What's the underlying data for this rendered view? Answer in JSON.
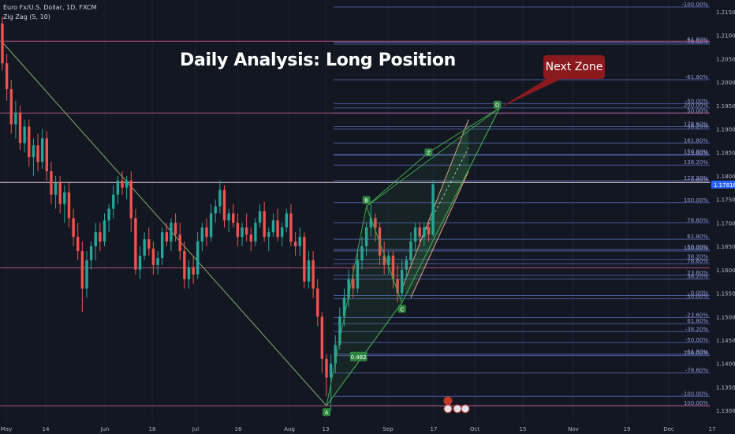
{
  "legend": {
    "symbol": "Euro Fx/U.S. Dollar, 1D, FXCM",
    "indicator": "Zig Zag (5, 10)"
  },
  "title": "Daily Analysis: Long Position",
  "callout": "Next Zone",
  "colors": {
    "background": "#131722",
    "up": "#26a69a",
    "down": "#ef5350",
    "fib_line": "#4a5a9a",
    "fib_text": "#8f9bd0",
    "hline": "#c85a8a",
    "zigzag": "#7fb069",
    "pattern": "#3fa34d",
    "channel": "#e8a08a",
    "callout": "#8b1a1f",
    "price_tag": "#2962ff"
  },
  "chart_data": {
    "type": "candlestick",
    "y_axis": {
      "ylim": [
        1.1275,
        1.2175
      ],
      "ticks": [
        "1.21500",
        "1.21000",
        "1.20500",
        "1.20000",
        "1.19500",
        "1.19000",
        "1.18500",
        "1.18000",
        "1.17500",
        "1.17000",
        "1.16500",
        "1.16000",
        "1.15500",
        "1.15000",
        "1.14500",
        "1.14000",
        "1.13500",
        "1.13000"
      ],
      "current_price": "1.17816"
    },
    "x_axis": {
      "ticks": [
        "May",
        "14",
        "Jun",
        "18",
        "Jul",
        "16",
        "Aug",
        "13",
        "Sep",
        "17",
        "Oct",
        "15",
        "Nov",
        "19",
        "Dec",
        "17"
      ]
    },
    "candles": [
      [
        1.2125,
        1.214,
        1.2025,
        1.204
      ],
      [
        1.204,
        1.206,
        1.196,
        1.1985
      ],
      [
        1.1985,
        1.2005,
        1.189,
        1.191
      ],
      [
        1.191,
        1.196,
        1.188,
        1.1935
      ],
      [
        1.1935,
        1.195,
        1.1855,
        1.187
      ],
      [
        1.187,
        1.192,
        1.185,
        1.1905
      ],
      [
        1.1905,
        1.192,
        1.182,
        1.184
      ],
      [
        1.184,
        1.188,
        1.18,
        1.1865
      ],
      [
        1.1865,
        1.189,
        1.181,
        1.183
      ],
      [
        1.183,
        1.19,
        1.1815,
        1.188
      ],
      [
        1.188,
        1.1895,
        1.179,
        1.181
      ],
      [
        1.181,
        1.183,
        1.174,
        1.176
      ],
      [
        1.176,
        1.18,
        1.173,
        1.1785
      ],
      [
        1.1785,
        1.18,
        1.172,
        1.174
      ],
      [
        1.174,
        1.178,
        1.17,
        1.1765
      ],
      [
        1.1765,
        1.1785,
        1.169,
        1.171
      ],
      [
        1.171,
        1.173,
        1.165,
        1.167
      ],
      [
        1.167,
        1.17,
        1.162,
        1.164
      ],
      [
        1.164,
        1.166,
        1.151,
        1.156
      ],
      [
        1.156,
        1.164,
        1.154,
        1.162
      ],
      [
        1.162,
        1.166,
        1.16,
        1.165
      ],
      [
        1.165,
        1.17,
        1.162,
        1.168
      ],
      [
        1.168,
        1.17,
        1.164,
        1.166
      ],
      [
        1.166,
        1.172,
        1.165,
        1.1705
      ],
      [
        1.1705,
        1.174,
        1.168,
        1.173
      ],
      [
        1.173,
        1.178,
        1.171,
        1.176
      ],
      [
        1.176,
        1.18,
        1.174,
        1.179
      ],
      [
        1.179,
        1.181,
        1.176,
        1.1775
      ],
      [
        1.1775,
        1.18,
        1.175,
        1.179
      ],
      [
        1.179,
        1.181,
        1.168,
        1.171
      ],
      [
        1.171,
        1.173,
        1.159,
        1.16
      ],
      [
        1.16,
        1.165,
        1.158,
        1.163
      ],
      [
        1.163,
        1.168,
        1.162,
        1.1665
      ],
      [
        1.1665,
        1.169,
        1.163,
        1.1645
      ],
      [
        1.1645,
        1.166,
        1.159,
        1.161
      ],
      [
        1.161,
        1.164,
        1.159,
        1.1625
      ],
      [
        1.1625,
        1.169,
        1.161,
        1.168
      ],
      [
        1.168,
        1.17,
        1.165,
        1.166
      ],
      [
        1.166,
        1.171,
        1.164,
        1.17
      ],
      [
        1.17,
        1.172,
        1.166,
        1.1675
      ],
      [
        1.1675,
        1.17,
        1.162,
        1.164
      ],
      [
        1.164,
        1.166,
        1.156,
        1.158
      ],
      [
        1.158,
        1.162,
        1.156,
        1.1605
      ],
      [
        1.1605,
        1.163,
        1.157,
        1.159
      ],
      [
        1.159,
        1.168,
        1.158,
        1.166
      ],
      [
        1.166,
        1.17,
        1.164,
        1.169
      ],
      [
        1.169,
        1.171,
        1.165,
        1.167
      ],
      [
        1.167,
        1.174,
        1.166,
        1.172
      ],
      [
        1.172,
        1.175,
        1.17,
        1.1735
      ],
      [
        1.1735,
        1.179,
        1.172,
        1.177
      ],
      [
        1.177,
        1.178,
        1.169,
        1.1705
      ],
      [
        1.1705,
        1.173,
        1.168,
        1.172
      ],
      [
        1.172,
        1.174,
        1.169,
        1.17
      ],
      [
        1.17,
        1.172,
        1.165,
        1.167
      ],
      [
        1.167,
        1.17,
        1.165,
        1.169
      ],
      [
        1.169,
        1.172,
        1.166,
        1.1675
      ],
      [
        1.1675,
        1.169,
        1.164,
        1.166
      ],
      [
        1.166,
        1.171,
        1.165,
        1.17
      ],
      [
        1.17,
        1.174,
        1.169,
        1.1725
      ],
      [
        1.1725,
        1.1745,
        1.166,
        1.167
      ],
      [
        1.167,
        1.169,
        1.164,
        1.168
      ],
      [
        1.168,
        1.172,
        1.167,
        1.1705
      ],
      [
        1.1705,
        1.173,
        1.166,
        1.167
      ],
      [
        1.167,
        1.17,
        1.165,
        1.169
      ],
      [
        1.169,
        1.173,
        1.168,
        1.172
      ],
      [
        1.172,
        1.174,
        1.165,
        1.166
      ],
      [
        1.166,
        1.168,
        1.163,
        1.165
      ],
      [
        1.165,
        1.169,
        1.163,
        1.167
      ],
      [
        1.167,
        1.168,
        1.156,
        1.1575
      ],
      [
        1.1575,
        1.164,
        1.156,
        1.162
      ],
      [
        1.162,
        1.164,
        1.154,
        1.156
      ],
      [
        1.156,
        1.158,
        1.148,
        1.15
      ],
      [
        1.15,
        1.151,
        1.138,
        1.141
      ],
      [
        1.141,
        1.142,
        1.133,
        1.137
      ],
      [
        1.137,
        1.142,
        1.13,
        1.14
      ],
      [
        1.14,
        1.146,
        1.138,
        1.144
      ],
      [
        1.144,
        1.152,
        1.143,
        1.15
      ],
      [
        1.15,
        1.156,
        1.148,
        1.154
      ],
      [
        1.154,
        1.16,
        1.152,
        1.158
      ],
      [
        1.158,
        1.161,
        1.154,
        1.156
      ],
      [
        1.156,
        1.164,
        1.155,
        1.162
      ],
      [
        1.162,
        1.167,
        1.16,
        1.165
      ],
      [
        1.165,
        1.17,
        1.163,
        1.169
      ],
      [
        1.169,
        1.174,
        1.167,
        1.171
      ],
      [
        1.171,
        1.172,
        1.166,
        1.169
      ],
      [
        1.169,
        1.17,
        1.161,
        1.163
      ],
      [
        1.163,
        1.166,
        1.159,
        1.161
      ],
      [
        1.161,
        1.164,
        1.159,
        1.163
      ],
      [
        1.163,
        1.164,
        1.156,
        1.158
      ],
      [
        1.158,
        1.161,
        1.153,
        1.155
      ],
      [
        1.155,
        1.162,
        1.154,
        1.16
      ],
      [
        1.16,
        1.163,
        1.158,
        1.162
      ],
      [
        1.162,
        1.168,
        1.161,
        1.166
      ],
      [
        1.166,
        1.17,
        1.164,
        1.169
      ],
      [
        1.169,
        1.17,
        1.165,
        1.167
      ],
      [
        1.167,
        1.17,
        1.165,
        1.169
      ],
      [
        1.169,
        1.17,
        1.166,
        1.1675
      ],
      [
        1.1675,
        1.179,
        1.167,
        1.1782
      ]
    ],
    "fib_levels": [
      {
        "y": 1.216,
        "label": "-100.00%"
      },
      {
        "y": 1.2085,
        "label": "61.80%"
      },
      {
        "y": 1.2081,
        "label": "78.60%"
      },
      {
        "y": 1.2005,
        "label": "-61.80%"
      },
      {
        "y": 1.1954,
        "label": "-50.00%"
      },
      {
        "y": 1.1945,
        "label": "200.00%"
      },
      {
        "y": 1.1934,
        "label": "50.00%"
      },
      {
        "y": 1.1905,
        "label": "178.60%"
      },
      {
        "y": 1.19,
        "label": "38.20%"
      },
      {
        "y": 1.187,
        "label": "161.80%"
      },
      {
        "y": 1.1846,
        "label": "150.00%"
      },
      {
        "y": 1.1844,
        "label": "23.60%"
      },
      {
        "y": 1.1823,
        "label": "138.20%"
      },
      {
        "y": 1.179,
        "label": "127.20%"
      },
      {
        "y": 1.1786,
        "label": "0.00%"
      },
      {
        "y": 1.1743,
        "label": "100.00%"
      },
      {
        "y": 1.17,
        "label": "78.60%"
      },
      {
        "y": 1.1665,
        "label": "61.80%"
      },
      {
        "y": 1.1643,
        "label": "50.00%"
      },
      {
        "y": 1.164,
        "label": "100.00%"
      },
      {
        "y": 1.1622,
        "label": "38.20%"
      },
      {
        "y": 1.1613,
        "label": "78.60%"
      },
      {
        "y": 1.1588,
        "label": "23.60%"
      },
      {
        "y": 1.158,
        "label": "38.20%"
      },
      {
        "y": 1.1545,
        "label": "0.00%"
      },
      {
        "y": 1.1538,
        "label": "50.00%"
      },
      {
        "y": 1.1498,
        "label": "-23.60%"
      },
      {
        "y": 1.1485,
        "label": "61.80%"
      },
      {
        "y": 1.1468,
        "label": "-38.20%"
      },
      {
        "y": 1.1445,
        "label": "-50.00%"
      },
      {
        "y": 1.142,
        "label": "-61.80%"
      },
      {
        "y": 1.1417,
        "label": "100.00%"
      },
      {
        "y": 1.138,
        "label": "-78.60%"
      },
      {
        "y": 1.133,
        "label": "-100.00%"
      },
      {
        "y": 1.131,
        "label": "100.00%"
      }
    ],
    "horizontal_lines": [
      1.2087,
      1.1934,
      1.1786,
      1.1604,
      1.131
    ],
    "zigzag": [
      [
        0,
        1.2085
      ],
      [
        73,
        1.131
      ]
    ],
    "pattern": {
      "points": [
        {
          "label": "A",
          "i": 73,
          "y": 1.131
        },
        {
          "label": "B",
          "i": 82,
          "y": 1.1735
        },
        {
          "label": "C",
          "i": 90,
          "y": 1.153
        },
        {
          "label": "D",
          "i": 112,
          "y": 1.1945
        }
      ],
      "extra_point": {
        "label": "Z",
        "i": 96,
        "y": 1.185
      },
      "ratio_label": {
        "text": "0.482",
        "i": 82,
        "y": 1.1415
      }
    },
    "channel": {
      "upper": [
        [
          90,
          1.156
        ],
        [
          105,
          1.192
        ]
      ],
      "lower": [
        [
          92,
          1.154
        ],
        [
          105,
          1.181
        ]
      ]
    }
  }
}
